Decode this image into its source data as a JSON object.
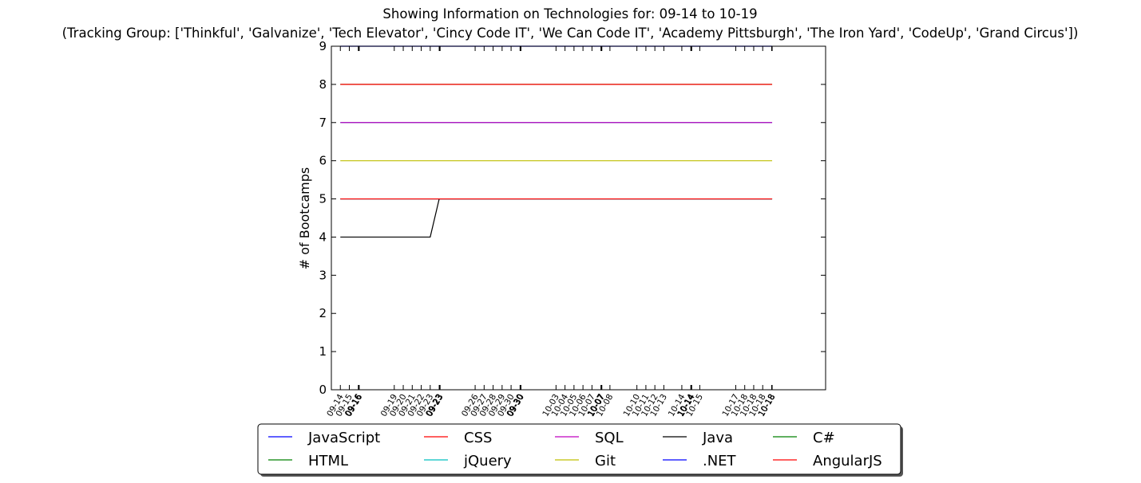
{
  "chart_data": {
    "type": "line",
    "title": "Showing Information on Technologies for: 09-14 to 10-19",
    "subtitle": "(Tracking Group: ['Thinkful', 'Galvanize', 'Tech Elevator', 'Cincy Code IT', 'We Can Code IT', 'Academy Pittsburgh', 'The Iron Yard', 'CodeUp', 'Grand Circus'])",
    "xlabel": "",
    "ylabel": "# of Bootcamps",
    "ylim": [
      0,
      9
    ],
    "yticks": [
      "0",
      "1",
      "2",
      "3",
      "4",
      "5",
      "6",
      "7",
      "8",
      "9"
    ],
    "xlim": [
      -1,
      54
    ],
    "x": [
      0,
      1,
      2,
      2.05,
      2.1,
      6,
      7,
      8,
      9,
      10,
      11,
      11.05,
      11.1,
      15,
      16,
      17,
      18,
      19,
      20,
      20.05,
      20.1,
      24,
      25,
      26,
      27,
      28,
      29,
      29.05,
      29.1,
      30,
      33,
      34,
      35,
      36,
      38,
      39,
      39.05,
      39.1,
      40,
      44,
      45,
      46,
      47,
      48,
      48.05
    ],
    "xtick_labels": [
      "09-14",
      "09-15",
      "09-16",
      "09-16",
      "09-16",
      "09-19",
      "09-20",
      "09-21",
      "09-22",
      "09-23",
      "09-23",
      "09-23",
      "09-23",
      "09-26",
      "09-27",
      "09-28",
      "09-29",
      "09-30",
      "09-30",
      "09-30",
      "09-30",
      "10-03",
      "10-04",
      "10-05",
      "10-06",
      "10-07",
      "10-07",
      "10-07",
      "10-07",
      "10-08",
      "10-10",
      "10-11",
      "10-12",
      "10-13",
      "10-14",
      "10-14",
      "10-14",
      "10-14",
      "10-15",
      "10-17",
      "10-18",
      "10-18",
      "10-18",
      "10-18",
      "10-18"
    ],
    "series": [
      {
        "name": "JavaScript",
        "color": "#0000ff",
        "values": [
          9,
          9,
          9,
          9,
          9,
          9,
          9,
          9,
          9,
          9,
          9,
          9,
          9,
          9,
          9,
          9,
          9,
          9,
          9,
          9,
          9,
          9,
          9,
          9,
          9,
          9,
          9,
          9,
          9,
          9,
          9,
          9,
          9,
          9,
          9,
          9,
          9,
          9,
          9,
          9,
          9,
          9,
          9,
          9,
          9
        ]
      },
      {
        "name": "HTML",
        "color": "#008000",
        "values": [
          8,
          8,
          8,
          8,
          8,
          8,
          8,
          8,
          8,
          8,
          8,
          8,
          8,
          8,
          8,
          8,
          8,
          8,
          8,
          8,
          8,
          8,
          8,
          8,
          8,
          8,
          8,
          8,
          8,
          8,
          8,
          8,
          8,
          8,
          8,
          8,
          8,
          8,
          8,
          8,
          8,
          8,
          8,
          8,
          8
        ]
      },
      {
        "name": "CSS",
        "color": "#ff0000",
        "values": [
          8,
          8,
          8,
          8,
          8,
          8,
          8,
          8,
          8,
          8,
          8,
          8,
          8,
          8,
          8,
          8,
          8,
          8,
          8,
          8,
          8,
          8,
          8,
          8,
          8,
          8,
          8,
          8,
          8,
          8,
          8,
          8,
          8,
          8,
          8,
          8,
          8,
          8,
          8,
          8,
          8,
          8,
          8,
          8,
          8
        ]
      },
      {
        "name": "jQuery",
        "color": "#00bfbf",
        "values": [
          7,
          7,
          7,
          7,
          7,
          7,
          7,
          7,
          7,
          7,
          7,
          7,
          7,
          7,
          7,
          7,
          7,
          7,
          7,
          7,
          7,
          7,
          7,
          7,
          7,
          7,
          7,
          7,
          7,
          7,
          7,
          7,
          7,
          7,
          7,
          7,
          7,
          7,
          7,
          7,
          7,
          7,
          7,
          7,
          7
        ]
      },
      {
        "name": "SQL",
        "color": "#bf00bf",
        "values": [
          7,
          7,
          7,
          7,
          7,
          7,
          7,
          7,
          7,
          7,
          7,
          7,
          7,
          7,
          7,
          7,
          7,
          7,
          7,
          7,
          7,
          7,
          7,
          7,
          7,
          7,
          7,
          7,
          7,
          7,
          7,
          7,
          7,
          7,
          7,
          7,
          7,
          7,
          7,
          7,
          7,
          7,
          7,
          7,
          7
        ]
      },
      {
        "name": "Git",
        "color": "#bfbf00",
        "values": [
          6,
          6,
          6,
          6,
          6,
          6,
          6,
          6,
          6,
          6,
          6,
          6,
          6,
          6,
          6,
          6,
          6,
          6,
          6,
          6,
          6,
          6,
          6,
          6,
          6,
          6,
          6,
          6,
          6,
          6,
          6,
          6,
          6,
          6,
          6,
          6,
          6,
          6,
          6,
          6,
          6,
          6,
          6,
          6,
          6
        ]
      },
      {
        "name": "Java",
        "color": "#000000",
        "values": [
          4,
          4,
          4,
          4,
          4,
          4,
          4,
          4,
          4,
          4,
          5,
          5,
          5,
          5,
          5,
          5,
          5,
          5,
          5,
          5,
          5,
          5,
          5,
          5,
          5,
          5,
          5,
          5,
          5,
          5,
          5,
          5,
          5,
          5,
          5,
          5,
          5,
          5,
          5,
          5,
          5,
          5,
          5,
          5,
          5
        ]
      },
      {
        "name": ".NET",
        "color": "#0000ff",
        "values": [
          5,
          5,
          5,
          5,
          5,
          5,
          5,
          5,
          5,
          5,
          5,
          5,
          5,
          5,
          5,
          5,
          5,
          5,
          5,
          5,
          5,
          5,
          5,
          5,
          5,
          5,
          5,
          5,
          5,
          5,
          5,
          5,
          5,
          5,
          5,
          5,
          5,
          5,
          5,
          5,
          5,
          5,
          5,
          5,
          5
        ]
      },
      {
        "name": "C#",
        "color": "#008000",
        "values": [
          5,
          5,
          5,
          5,
          5,
          5,
          5,
          5,
          5,
          5,
          5,
          5,
          5,
          5,
          5,
          5,
          5,
          5,
          5,
          5,
          5,
          5,
          5,
          5,
          5,
          5,
          5,
          5,
          5,
          5,
          5,
          5,
          5,
          5,
          5,
          5,
          5,
          5,
          5,
          5,
          5,
          5,
          5,
          5,
          5
        ]
      },
      {
        "name": "AngularJS",
        "color": "#ff0000",
        "values": [
          5,
          5,
          5,
          5,
          5,
          5,
          5,
          5,
          5,
          5,
          5,
          5,
          5,
          5,
          5,
          5,
          5,
          5,
          5,
          5,
          5,
          5,
          5,
          5,
          5,
          5,
          5,
          5,
          5,
          5,
          5,
          5,
          5,
          5,
          5,
          5,
          5,
          5,
          5,
          5,
          5,
          5,
          5,
          5,
          5
        ]
      }
    ],
    "legend": {
      "placement": "below",
      "columns": 5,
      "entries": [
        "JavaScript",
        "HTML",
        "CSS",
        "jQuery",
        "SQL",
        "Git",
        "Java",
        ".NET",
        "C#",
        "AngularJS"
      ]
    }
  }
}
